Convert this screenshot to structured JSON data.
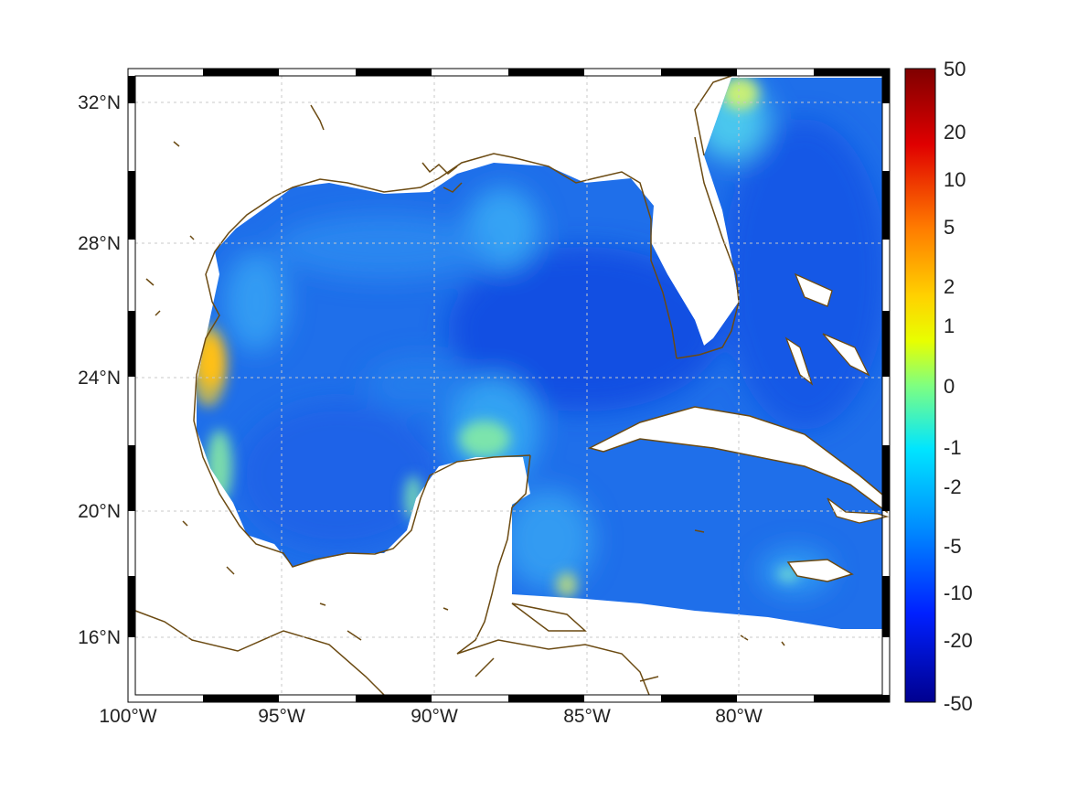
{
  "map": {
    "lon_ticks": [
      "100°W",
      "95°W",
      "90°W",
      "85°W",
      "80°W"
    ],
    "lat_ticks": [
      "32°N",
      "28°N",
      "24°N",
      "20°N",
      "16°N"
    ],
    "colorbar_ticks": [
      "50",
      "20",
      "10",
      "5",
      "2",
      "1",
      "0",
      "-1",
      "-2",
      "-5",
      "-10",
      "-20",
      "-50"
    ],
    "colors": {
      "ocean_base": "#1f6fea",
      "ocean_deep": "#1048e0",
      "coastline": "#6b4a12",
      "frame": "#000000",
      "grid": "#c8c8c8"
    }
  }
}
